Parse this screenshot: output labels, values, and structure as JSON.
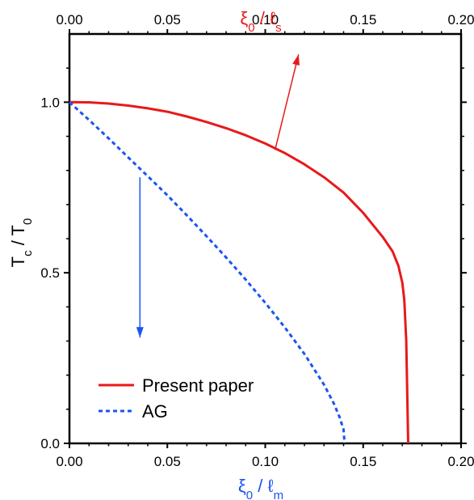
{
  "chart_data": {
    "type": "line",
    "x": {
      "top_label": {
        "main": "ξ",
        "sub1": "0",
        "mid": " / ℓ",
        "sub2": "s"
      },
      "bottom_label": {
        "main": "ξ",
        "sub1": "0",
        "mid": " / ℓ",
        "sub2": "m"
      },
      "lim": [
        0,
        0.2
      ],
      "ticks": [
        0.0,
        0.05,
        0.1,
        0.15,
        0.2
      ],
      "tick_labels": [
        "0.00",
        "0.05",
        "0.10",
        "0.15",
        "0.20"
      ]
    },
    "y": {
      "label": {
        "main": "T",
        "sub1": "c",
        "mid": " / T",
        "sub2": "0"
      },
      "lim": [
        0,
        1.2
      ],
      "ticks": [
        0.0,
        0.5,
        1.0
      ],
      "tick_labels": [
        "0.0",
        "0.5",
        "1.0"
      ]
    },
    "series": [
      {
        "name": "Present paper",
        "color": "#e8191a",
        "dash": "solid",
        "axis": "top",
        "points": [
          [
            0.0,
            1.0
          ],
          [
            0.01,
            0.9995
          ],
          [
            0.02,
            0.996
          ],
          [
            0.03,
            0.99
          ],
          [
            0.04,
            0.982
          ],
          [
            0.05,
            0.972
          ],
          [
            0.06,
            0.958
          ],
          [
            0.07,
            0.942
          ],
          [
            0.08,
            0.924
          ],
          [
            0.09,
            0.903
          ],
          [
            0.1,
            0.879
          ],
          [
            0.11,
            0.851
          ],
          [
            0.12,
            0.818
          ],
          [
            0.13,
            0.78
          ],
          [
            0.14,
            0.735
          ],
          [
            0.15,
            0.676
          ],
          [
            0.16,
            0.605
          ],
          [
            0.165,
            0.563
          ],
          [
            0.168,
            0.52
          ],
          [
            0.17,
            0.47
          ],
          [
            0.171,
            0.42
          ],
          [
            0.172,
            0.3
          ],
          [
            0.1725,
            0.15
          ],
          [
            0.173,
            0.0
          ]
        ]
      },
      {
        "name": "AG",
        "color": "#1b54f2",
        "dash": "dashed",
        "axis": "bottom",
        "points": [
          [
            0.0,
            1.0
          ],
          [
            0.01,
            0.948
          ],
          [
            0.02,
            0.894
          ],
          [
            0.03,
            0.838
          ],
          [
            0.04,
            0.783
          ],
          [
            0.05,
            0.727
          ],
          [
            0.06,
            0.668
          ],
          [
            0.07,
            0.607
          ],
          [
            0.08,
            0.545
          ],
          [
            0.09,
            0.48
          ],
          [
            0.1,
            0.412
          ],
          [
            0.11,
            0.34
          ],
          [
            0.12,
            0.262
          ],
          [
            0.13,
            0.172
          ],
          [
            0.135,
            0.117
          ],
          [
            0.138,
            0.076
          ],
          [
            0.14,
            0.04
          ],
          [
            0.1405,
            0.0
          ]
        ]
      }
    ],
    "arrows": [
      {
        "name": "top-axis-arrow",
        "color": "#e8191a",
        "from": [
          0.105,
          0.86
        ],
        "to": [
          0.117,
          1.14
        ]
      },
      {
        "name": "bottom-axis-arrow",
        "color": "#1b54f2",
        "from": [
          0.036,
          0.78
        ],
        "to": [
          0.036,
          0.31
        ]
      }
    ],
    "legend": {
      "placement": "bottom-left"
    },
    "grid": false
  }
}
